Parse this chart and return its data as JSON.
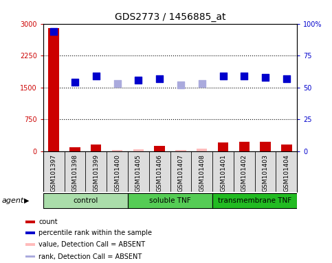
{
  "title": "GDS2773 / 1456885_at",
  "samples": [
    "GSM101397",
    "GSM101398",
    "GSM101399",
    "GSM101400",
    "GSM101405",
    "GSM101406",
    "GSM101407",
    "GSM101408",
    "GSM101401",
    "GSM101402",
    "GSM101403",
    "GSM101404"
  ],
  "groups": [
    {
      "label": "control",
      "start": 0,
      "end": 4,
      "color": "#aaddaa"
    },
    {
      "label": "soluble TNF",
      "start": 4,
      "end": 8,
      "color": "#55cc55"
    },
    {
      "label": "transmembrane TNF",
      "start": 8,
      "end": 12,
      "color": "#22bb22"
    }
  ],
  "count_values": [
    2890,
    90,
    160,
    30,
    45,
    120,
    35,
    55,
    210,
    215,
    215,
    155
  ],
  "count_absent": [
    false,
    false,
    false,
    true,
    true,
    false,
    true,
    true,
    false,
    false,
    false,
    false
  ],
  "rank_values": [
    94,
    54,
    59,
    53,
    56,
    57,
    52,
    53,
    59,
    59,
    58,
    57
  ],
  "rank_absent": [
    false,
    false,
    false,
    true,
    false,
    false,
    true,
    true,
    false,
    false,
    false,
    false
  ],
  "ylim_left": [
    0,
    3000
  ],
  "ylim_right": [
    0,
    100
  ],
  "yticks_left": [
    0,
    750,
    1500,
    2250,
    3000
  ],
  "yticks_right": [
    0,
    25,
    50,
    75,
    100
  ],
  "ytick_labels_left": [
    "0",
    "750",
    "1500",
    "2250",
    "3000"
  ],
  "ytick_labels_right": [
    "0",
    "25",
    "50",
    "75",
    "100%"
  ],
  "bar_width": 0.5,
  "count_color_present": "#cc0000",
  "count_color_absent": "#ffbbbb",
  "rank_color_present": "#0000cc",
  "rank_color_absent": "#aaaadd",
  "marker_size": 55,
  "bg_color_plot": "#ffffff",
  "bg_color_sample": "#dddddd",
  "bg_color_fig": "#ffffff",
  "left_label_color": "#cc0000",
  "right_label_color": "#0000cc",
  "grid_color": "#000000",
  "agent_text": "agent",
  "legend_items": [
    {
      "label": "count",
      "color": "#cc0000"
    },
    {
      "label": "percentile rank within the sample",
      "color": "#0000cc"
    },
    {
      "label": "value, Detection Call = ABSENT",
      "color": "#ffbbbb"
    },
    {
      "label": "rank, Detection Call = ABSENT",
      "color": "#aaaadd"
    }
  ]
}
